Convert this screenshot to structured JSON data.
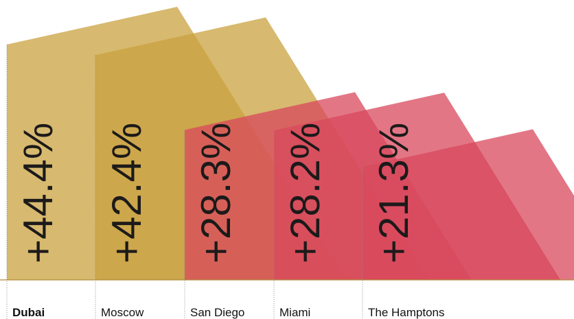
{
  "chart_data": {
    "type": "slanted-bar",
    "categories": [
      "Dubai",
      "Moscow",
      "San Diego",
      "Miami",
      "The Hamptons"
    ],
    "values": [
      44.4,
      42.4,
      28.3,
      28.2,
      21.3
    ],
    "value_labels": [
      "+44.4%",
      "+42.4%",
      "+28.3%",
      "+28.2%",
      "+21.3%"
    ],
    "colors": [
      "#c9a13f",
      "#c9a13f",
      "#d8485c",
      "#d8485c",
      "#d8485c"
    ],
    "ylim": [
      0,
      52.8
    ],
    "highlight_index": 0
  }
}
